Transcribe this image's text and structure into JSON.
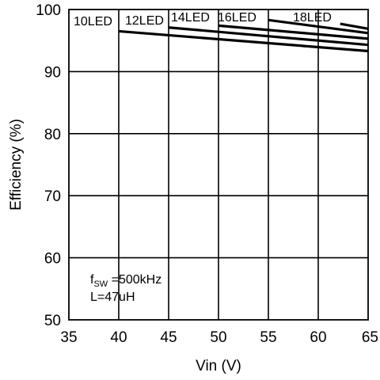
{
  "chart_data": {
    "type": "line",
    "xlabel": "Vin (V)",
    "ylabel": "Efficiency (%)",
    "xlim": [
      35,
      65
    ],
    "ylim": [
      50,
      100
    ],
    "x_ticks": [
      35,
      40,
      45,
      50,
      55,
      60,
      65
    ],
    "y_ticks": [
      50,
      60,
      70,
      80,
      90,
      100
    ],
    "grid": true,
    "series": [
      {
        "name": "10LED",
        "x": [
          40,
          65
        ],
        "y": [
          96.5,
          93.3
        ]
      },
      {
        "name": "12LED",
        "x": [
          45,
          65
        ],
        "y": [
          97.1,
          94.3
        ]
      },
      {
        "name": "14LED",
        "x": [
          50,
          65
        ],
        "y": [
          97.4,
          95.3
        ]
      },
      {
        "name": "16LED",
        "x": [
          55,
          65
        ],
        "y": [
          98.3,
          96.2
        ]
      },
      {
        "name": "18LED",
        "x": [
          62.2,
          65
        ],
        "y": [
          97.7,
          96.9
        ]
      }
    ],
    "annotation": {
      "f_main": "f",
      "f_sub": "SW",
      "f_value": " =500kHz",
      "inductance": "L=47uH"
    }
  }
}
